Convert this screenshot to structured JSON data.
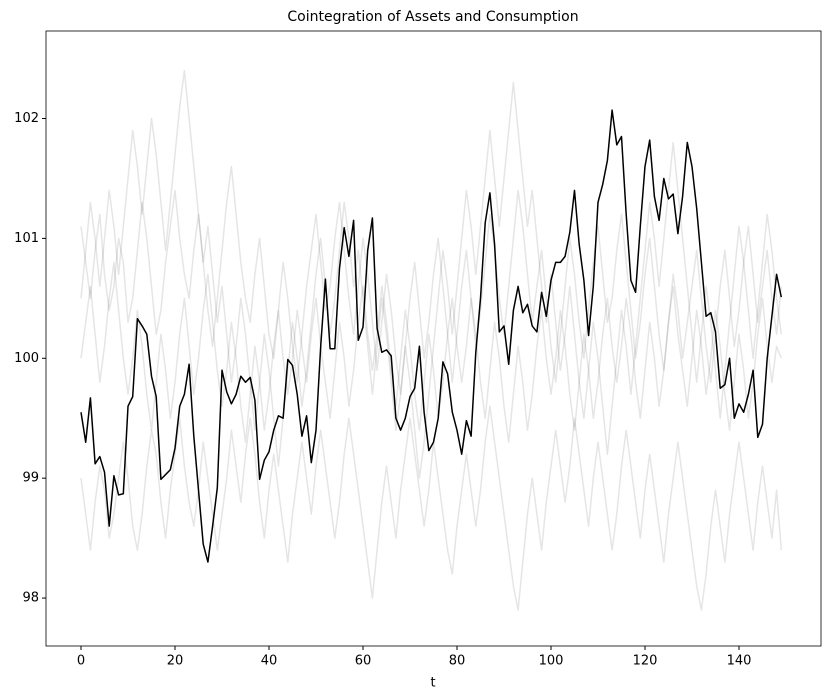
{
  "chart_data": {
    "type": "line",
    "title": "Cointegration of Assets and Consumption",
    "xlabel": "t",
    "x": [
      0,
      1,
      2,
      3,
      4,
      5,
      6,
      7,
      8,
      9,
      10,
      11,
      12,
      13,
      14,
      15,
      16,
      17,
      18,
      19,
      20,
      21,
      22,
      23,
      24,
      25,
      26,
      27,
      28,
      29,
      30,
      31,
      32,
      33,
      34,
      35,
      36,
      37,
      38,
      39,
      40,
      41,
      42,
      43,
      44,
      45,
      46,
      47,
      48,
      49,
      50,
      51,
      52,
      53,
      54,
      55,
      56,
      57,
      58,
      59,
      60,
      61,
      62,
      63,
      64,
      65,
      66,
      67,
      68,
      69,
      70,
      71,
      72,
      73,
      74,
      75,
      76,
      77,
      78,
      79,
      80,
      81,
      82,
      83,
      84,
      85,
      86,
      87,
      88,
      89,
      90,
      91,
      92,
      93,
      94,
      95,
      96,
      97,
      98,
      99,
      100,
      101,
      102,
      103,
      104,
      105,
      106,
      107,
      108,
      109,
      110,
      111,
      112,
      113,
      114,
      115,
      116,
      117,
      118,
      119,
      120,
      121,
      122,
      123,
      124,
      125,
      126,
      127,
      128,
      129,
      130,
      131,
      132,
      133,
      134,
      135,
      136,
      137,
      138,
      139,
      140,
      141,
      142,
      143,
      144,
      145,
      146,
      147,
      148,
      149
    ],
    "xlim": [
      -7.45,
      157.45
    ],
    "ylim": [
      97.6,
      102.73
    ],
    "xticks": [
      0,
      20,
      40,
      60,
      80,
      100,
      120,
      140
    ],
    "yticks": [
      98,
      99,
      100,
      101,
      102
    ],
    "series": [
      {
        "color": "#000000",
        "alpha": 0.1,
        "values": [
          101.1,
          100.8,
          100.5,
          100.9,
          101.2,
          100.7,
          100.4,
          100.6,
          101.0,
          100.8,
          100.3,
          100.5,
          100.9,
          101.3,
          101.0,
          100.6,
          100.2,
          100.4,
          100.8,
          101.1,
          101.4,
          101.0,
          100.7,
          100.5,
          100.9,
          101.2,
          100.8,
          100.4,
          100.1,
          100.5,
          100.9,
          101.3,
          101.6,
          101.2,
          100.8,
          100.5,
          100.3,
          100.7,
          101.0,
          100.6,
          100.2,
          100.0,
          100.4,
          100.8,
          100.5,
          100.1,
          99.8,
          100.2,
          100.6,
          100.9,
          101.2,
          100.8,
          100.4,
          100.6,
          101.0,
          101.3,
          100.9,
          100.5,
          100.2,
          100.6,
          101.0,
          100.7,
          100.3,
          99.9,
          100.3,
          100.7,
          100.4,
          100.0,
          99.7,
          100.1,
          100.5,
          100.8,
          100.4,
          100.0,
          100.3,
          100.7,
          101.0,
          100.6,
          100.2,
          99.8,
          100.2,
          100.6,
          100.9,
          100.5,
          100.1,
          100.4,
          100.8,
          101.2,
          100.9,
          100.5,
          100.2,
          100.6,
          101.0,
          101.4,
          101.1,
          100.7,
          100.3,
          100.6,
          100.9,
          100.5,
          100.1,
          99.8,
          100.2,
          100.6,
          101.0,
          100.7,
          100.3,
          100.0,
          100.4,
          100.8,
          101.1,
          100.7,
          100.3,
          100.5,
          100.9,
          101.2,
          100.8,
          100.4,
          100.0,
          100.3,
          100.7,
          101.0,
          100.6,
          100.2,
          99.9,
          100.3,
          100.7,
          100.4,
          100.0,
          100.3,
          100.6,
          100.9,
          100.5,
          100.1,
          99.8,
          100.2,
          100.6,
          100.9,
          100.5,
          100.1,
          100.4,
          100.8,
          101.1,
          100.7,
          100.3,
          100.6,
          100.9,
          100.5,
          100.2,
          100.6
        ]
      },
      {
        "color": "#000000",
        "alpha": 0.1,
        "values": [
          99.0,
          98.7,
          98.4,
          98.8,
          99.1,
          98.9,
          98.5,
          98.7,
          99.0,
          99.3,
          99.0,
          98.6,
          98.4,
          98.7,
          99.1,
          99.4,
          99.2,
          98.8,
          98.5,
          98.9,
          99.2,
          99.5,
          99.1,
          98.8,
          98.6,
          98.9,
          99.3,
          99.0,
          98.7,
          98.4,
          98.7,
          99.0,
          99.4,
          99.1,
          98.8,
          99.2,
          99.5,
          99.2,
          98.8,
          98.5,
          98.9,
          99.2,
          98.9,
          98.6,
          98.3,
          98.7,
          99.0,
          99.3,
          99.0,
          98.7,
          99.1,
          99.4,
          99.1,
          98.8,
          98.5,
          98.8,
          99.2,
          99.5,
          99.2,
          98.9,
          98.6,
          98.3,
          98.0,
          98.4,
          98.8,
          99.1,
          98.8,
          98.5,
          98.9,
          99.2,
          99.5,
          99.2,
          98.9,
          98.6,
          98.9,
          99.3,
          99.0,
          98.7,
          98.4,
          98.2,
          98.6,
          98.9,
          99.2,
          98.9,
          98.6,
          98.9,
          99.3,
          99.6,
          99.3,
          99.0,
          98.7,
          98.4,
          98.1,
          97.9,
          98.3,
          98.7,
          99.0,
          98.7,
          98.4,
          98.8,
          99.1,
          99.4,
          99.1,
          98.8,
          99.1,
          99.5,
          99.2,
          98.9,
          98.6,
          99.0,
          99.3,
          99.0,
          98.7,
          98.4,
          98.7,
          99.1,
          99.4,
          99.1,
          98.8,
          98.5,
          98.9,
          99.2,
          98.9,
          98.6,
          98.3,
          98.7,
          99.0,
          99.3,
          99.0,
          98.7,
          98.4,
          98.1,
          97.9,
          98.2,
          98.6,
          98.9,
          98.6,
          98.3,
          98.7,
          99.0,
          99.3,
          99.0,
          98.7,
          98.4,
          98.8,
          99.1,
          98.8,
          98.5,
          98.9,
          98.4
        ]
      },
      {
        "color": "#000000",
        "alpha": 0.1,
        "values": [
          100.0,
          100.3,
          100.6,
          100.2,
          99.8,
          100.1,
          100.5,
          100.8,
          100.4,
          100.0,
          99.7,
          100.0,
          100.4,
          100.1,
          99.7,
          99.4,
          99.8,
          100.2,
          99.9,
          99.5,
          99.8,
          100.2,
          100.5,
          100.1,
          99.7,
          100.0,
          100.4,
          100.7,
          100.3,
          99.9,
          99.6,
          99.9,
          100.3,
          100.0,
          99.6,
          99.3,
          99.7,
          100.1,
          99.8,
          99.4,
          99.7,
          100.1,
          100.4,
          100.0,
          99.7,
          100.0,
          100.4,
          100.1,
          99.8,
          100.2,
          100.5,
          100.1,
          99.8,
          99.5,
          99.9,
          100.3,
          100.0,
          99.6,
          99.9,
          100.3,
          100.6,
          100.2,
          99.9,
          100.2,
          100.6,
          100.3,
          99.9,
          99.6,
          100.0,
          100.4,
          100.1,
          99.7,
          99.4,
          99.8,
          100.2,
          99.9,
          99.5,
          99.8,
          100.2,
          100.5,
          100.1,
          99.8,
          100.1,
          100.5,
          100.2,
          99.8,
          99.5,
          99.9,
          100.3,
          100.0,
          99.6,
          99.3,
          99.7,
          100.1,
          99.8,
          99.4,
          99.7,
          100.1,
          100.4,
          100.0,
          99.7,
          100.0,
          100.4,
          100.1,
          99.7,
          99.4,
          99.8,
          100.2,
          99.9,
          99.5,
          99.8,
          100.2,
          100.5,
          100.1,
          99.8,
          100.1,
          100.5,
          100.2,
          99.8,
          99.5,
          99.9,
          100.3,
          100.0,
          99.6,
          99.9,
          100.3,
          100.6,
          100.2,
          99.9,
          99.6,
          100.0,
          100.4,
          100.1,
          99.7,
          100.0,
          100.4,
          100.1,
          99.7,
          99.4,
          99.8,
          100.2,
          99.9,
          99.5,
          99.8,
          100.2,
          100.5,
          100.1,
          99.8,
          100.1,
          100.0
        ]
      },
      {
        "color": "#000000",
        "alpha": 0.1,
        "values": [
          100.5,
          100.9,
          101.3,
          101.0,
          100.6,
          101.0,
          101.4,
          101.1,
          100.7,
          101.1,
          101.5,
          101.9,
          101.6,
          101.2,
          101.6,
          102.0,
          101.7,
          101.3,
          100.9,
          101.3,
          101.7,
          102.1,
          102.4,
          102.0,
          101.6,
          101.2,
          100.8,
          101.1,
          100.7,
          100.3,
          100.6,
          100.2,
          99.8,
          100.1,
          100.5,
          100.2,
          99.8,
          99.4,
          99.8,
          100.2,
          99.9,
          99.5,
          99.1,
          99.5,
          99.9,
          100.3,
          100.0,
          99.6,
          99.9,
          100.3,
          100.7,
          101.0,
          100.6,
          100.2,
          100.5,
          100.9,
          101.3,
          101.0,
          100.6,
          100.9,
          100.5,
          100.1,
          99.7,
          100.1,
          100.5,
          100.2,
          99.8,
          99.4,
          99.7,
          100.1,
          99.8,
          99.4,
          99.0,
          99.3,
          99.7,
          100.1,
          100.5,
          100.9,
          100.6,
          100.2,
          100.6,
          101.0,
          101.4,
          101.1,
          100.7,
          101.1,
          101.5,
          101.9,
          101.5,
          101.1,
          101.5,
          101.9,
          102.3,
          101.9,
          101.5,
          101.1,
          101.4,
          101.0,
          100.6,
          100.3,
          100.7,
          100.3,
          99.9,
          100.2,
          100.6,
          100.2,
          99.8,
          99.5,
          99.9,
          100.3,
          100.0,
          99.6,
          99.2,
          99.6,
          100.0,
          100.4,
          100.1,
          99.7,
          100.1,
          100.5,
          100.9,
          101.3,
          101.0,
          100.6,
          101.0,
          101.4,
          101.8,
          101.4,
          101.0,
          100.6,
          100.2,
          99.8,
          100.2,
          100.6,
          100.3,
          99.9,
          99.5,
          99.9,
          100.3,
          100.7,
          101.1,
          100.8,
          100.4,
          100.0,
          100.4,
          100.8,
          101.2,
          100.9,
          100.5,
          100.2
        ]
      },
      {
        "color": "#000000",
        "alpha": 1,
        "values": [
          99.55,
          99.3,
          99.67,
          99.12,
          99.18,
          99.05,
          98.6,
          99.02,
          98.86,
          98.87,
          99.6,
          99.68,
          100.33,
          100.27,
          100.2,
          99.85,
          99.68,
          98.99,
          99.03,
          99.07,
          99.25,
          99.6,
          99.7,
          99.95,
          99.35,
          98.9,
          98.45,
          98.3,
          98.6,
          98.92,
          99.9,
          99.72,
          99.62,
          99.7,
          99.85,
          99.8,
          99.84,
          99.65,
          98.99,
          99.15,
          99.22,
          99.4,
          99.52,
          99.5,
          99.99,
          99.94,
          99.7,
          99.35,
          99.52,
          99.13,
          99.4,
          100.1,
          100.66,
          100.08,
          100.08,
          100.75,
          101.09,
          100.85,
          101.15,
          100.15,
          100.26,
          100.9,
          101.17,
          100.25,
          100.05,
          100.07,
          100.02,
          99.5,
          99.4,
          99.5,
          99.68,
          99.75,
          100.1,
          99.55,
          99.23,
          99.3,
          99.5,
          99.97,
          99.87,
          99.55,
          99.4,
          99.2,
          99.48,
          99.35,
          100.05,
          100.5,
          101.13,
          101.38,
          100.95,
          100.22,
          100.27,
          99.95,
          100.4,
          100.6,
          100.38,
          100.45,
          100.27,
          100.22,
          100.55,
          100.35,
          100.65,
          100.8,
          100.8,
          100.85,
          101.05,
          101.4,
          100.95,
          100.65,
          100.19,
          100.6,
          101.3,
          101.45,
          101.65,
          102.07,
          101.78,
          101.85,
          101.2,
          100.65,
          100.55,
          101.1,
          101.6,
          101.82,
          101.35,
          101.15,
          101.5,
          101.33,
          101.37,
          101.04,
          101.35,
          101.8,
          101.6,
          101.25,
          100.8,
          100.35,
          100.38,
          100.22,
          99.75,
          99.78,
          100.0,
          99.5,
          99.62,
          99.55,
          99.7,
          99.9,
          99.34,
          99.45,
          100.0,
          100.35,
          100.7,
          100.51
        ]
      }
    ]
  }
}
